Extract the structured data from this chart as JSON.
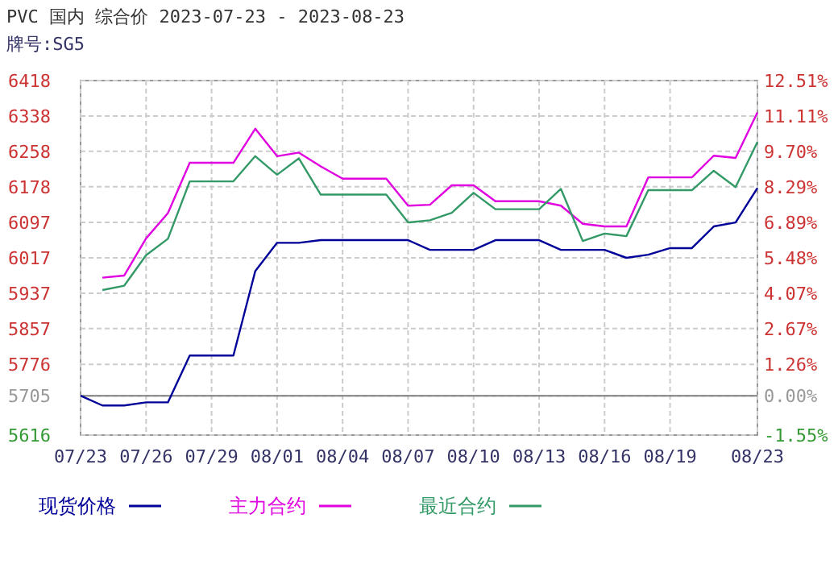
{
  "chart_data": {
    "type": "line",
    "title": "PVC 国内 综合价 2023-07-23 - 2023-08-23",
    "subtitle": "牌号:SG5",
    "x": [
      "2023-07-23",
      "2023-07-24",
      "2023-07-25",
      "2023-07-26",
      "2023-07-27",
      "2023-07-28",
      "2023-07-29",
      "2023-07-30",
      "2023-07-31",
      "2023-08-01",
      "2023-08-02",
      "2023-08-03",
      "2023-08-04",
      "2023-08-05",
      "2023-08-06",
      "2023-08-07",
      "2023-08-08",
      "2023-08-09",
      "2023-08-10",
      "2023-08-11",
      "2023-08-12",
      "2023-08-13",
      "2023-08-14",
      "2023-08-15",
      "2023-08-16",
      "2023-08-17",
      "2023-08-18",
      "2023-08-19",
      "2023-08-20",
      "2023-08-21",
      "2023-08-22",
      "2023-08-23"
    ],
    "series": [
      {
        "name": "现货价格",
        "color": "#000099",
        "values": [
          5705,
          5683,
          5683,
          5690,
          5690,
          5796,
          5796,
          5796,
          5987,
          6051,
          6051,
          6057,
          6057,
          6057,
          6057,
          6057,
          6035,
          6035,
          6035,
          6057,
          6057,
          6057,
          6035,
          6035,
          6035,
          6017,
          6024,
          6039,
          6039,
          6088,
          6097,
          6175
        ]
      },
      {
        "name": "主力合约",
        "color": "#e000e0",
        "values": [
          null,
          5972,
          5977,
          6061,
          6118,
          6232,
          6232,
          6232,
          6309,
          6247,
          6255,
          6224,
          6196,
          6196,
          6196,
          6135,
          6137,
          6181,
          6181,
          6145,
          6145,
          6145,
          6135,
          6094,
          6088,
          6088,
          6199,
          6199,
          6199,
          6248,
          6243,
          6346
        ]
      },
      {
        "name": "最近合约",
        "color": "#339966",
        "values": [
          null,
          5944,
          5954,
          6023,
          6060,
          6190,
          6190,
          6190,
          6247,
          6205,
          6242,
          6160,
          6160,
          6160,
          6160,
          6097,
          6102,
          6119,
          6164,
          6127,
          6127,
          6127,
          6173,
          6055,
          6072,
          6066,
          6170,
          6170,
          6170,
          6214,
          6177,
          6279
        ]
      }
    ],
    "xlim": [
      "2023-07-23",
      "2023-08-23"
    ],
    "xticks": [
      {
        "value": "2023-07-23",
        "label": "07/23"
      },
      {
        "value": "2023-07-26",
        "label": "07/26"
      },
      {
        "value": "2023-07-29",
        "label": "07/29"
      },
      {
        "value": "2023-08-01",
        "label": "08/01"
      },
      {
        "value": "2023-08-04",
        "label": "08/04"
      },
      {
        "value": "2023-08-07",
        "label": "08/07"
      },
      {
        "value": "2023-08-10",
        "label": "08/10"
      },
      {
        "value": "2023-08-13",
        "label": "08/13"
      },
      {
        "value": "2023-08-16",
        "label": "08/16"
      },
      {
        "value": "2023-08-19",
        "label": "08/19"
      },
      {
        "value": "2023-08-23",
        "label": "08/23"
      }
    ],
    "ylim": [
      5616,
      6418
    ],
    "yticks": [
      5616,
      5705,
      5776,
      5857,
      5937,
      6017,
      6097,
      6178,
      6258,
      6338,
      6418
    ],
    "y2lim": [
      -1.55,
      12.51
    ],
    "y2ticks": [
      {
        "value": -1.55,
        "label": "-1.55%"
      },
      {
        "value": 0,
        "label": "0.00%"
      },
      {
        "value": 1.26,
        "label": "1.26%"
      },
      {
        "value": 2.67,
        "label": "2.67%"
      },
      {
        "value": 4.07,
        "label": "4.07%"
      },
      {
        "value": 5.48,
        "label": "5.48%"
      },
      {
        "value": 6.89,
        "label": "6.89%"
      },
      {
        "value": 8.29,
        "label": "8.29%"
      },
      {
        "value": 9.7,
        "label": "9.70%"
      },
      {
        "value": 11.11,
        "label": "11.11%"
      },
      {
        "value": 12.51,
        "label": "12.51%"
      }
    ],
    "ref_lines": [
      {
        "axis": "y",
        "value": 5705,
        "color": "#808080"
      }
    ],
    "grid": true,
    "legend": "bottom",
    "line_style": "solid",
    "marker": "none"
  }
}
